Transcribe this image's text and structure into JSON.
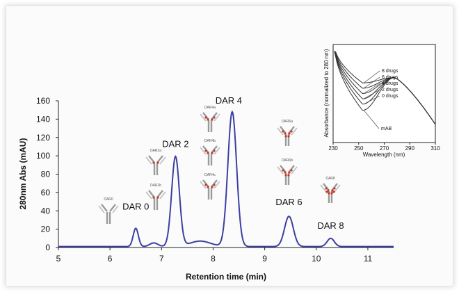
{
  "chart_data": [
    {
      "type": "line",
      "xlabel": "Retention time (min)",
      "ylabel": "280nm Abs (mAU)",
      "xlim": [
        5,
        11.5
      ],
      "ylim": [
        0,
        160
      ],
      "x_ticks": [
        "5",
        "6",
        "7",
        "8",
        "9",
        "10",
        "11"
      ],
      "y_ticks": [
        "0",
        "20",
        "40",
        "60",
        "80",
        "100",
        "120",
        "140",
        "160"
      ],
      "line_color": "#3b3fa0",
      "baseline": 1,
      "peaks": [
        {
          "label": "DAR 0",
          "x": 6.5,
          "y": 20,
          "width": 0.05
        },
        {
          "label": "DAR 2",
          "x": 7.27,
          "y": 98,
          "width": 0.075
        },
        {
          "label": "DAR 4",
          "x": 8.37,
          "y": 147,
          "width": 0.085
        },
        {
          "label": "DAR 6",
          "x": 9.47,
          "y": 33,
          "width": 0.085
        },
        {
          "label": "DAR 8",
          "x": 10.28,
          "y": 9,
          "width": 0.07
        }
      ],
      "minor_bumps": [
        {
          "x": 6.85,
          "y": 4,
          "width": 0.08
        },
        {
          "x": 7.75,
          "y": 6,
          "width": 0.2
        }
      ],
      "antibody_labels": [
        "DAR0",
        "DAR2a",
        "DAR2b",
        "DAR4a",
        "DAR4b",
        "DAR4c",
        "DAR6a",
        "DAR6b",
        "DAR8"
      ]
    },
    {
      "type": "line",
      "xlabel": "Wavelength (nm)",
      "ylabel": "Absorbance (normalized to 280 nm)",
      "xlim": [
        230,
        310
      ],
      "x_ticks": [
        "230",
        "250",
        "270",
        "290",
        "310"
      ],
      "series_labels": [
        "8 drugs",
        "6 drugs",
        "4 drugs",
        "2 drugs",
        "0 drugs",
        "mAB"
      ],
      "dip_values": [
        0.62,
        0.56,
        0.5,
        0.44,
        0.38,
        0.31
      ],
      "peak_x": 278
    }
  ]
}
